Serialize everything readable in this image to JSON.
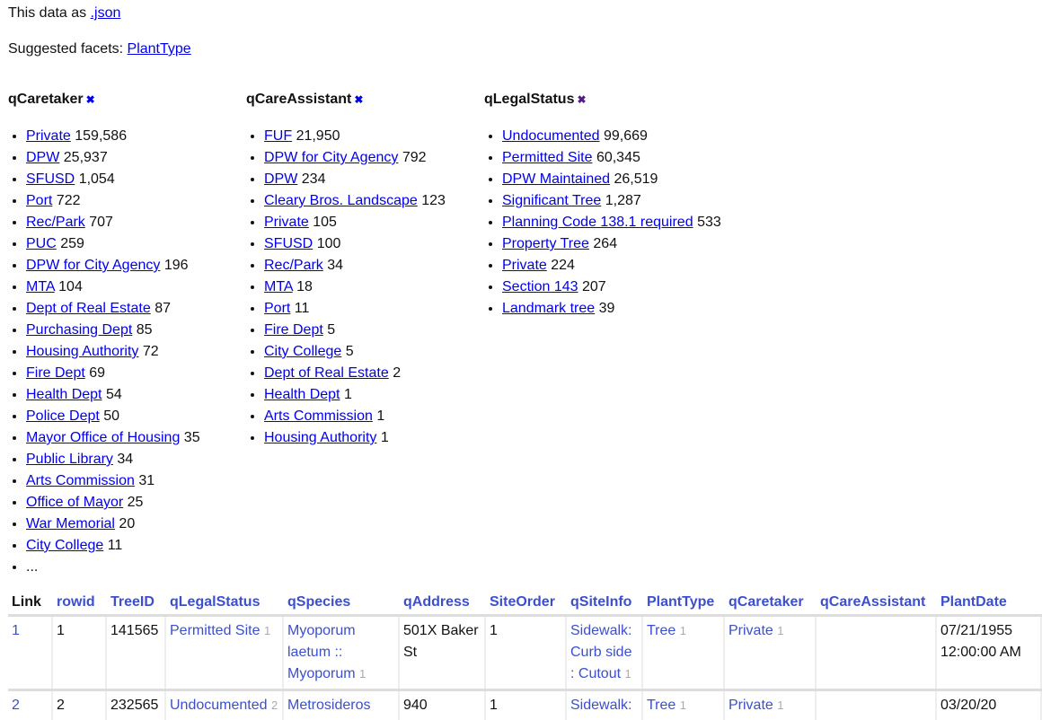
{
  "intro": {
    "prefix": "This data as ",
    "json_link": ".json"
  },
  "suggested": {
    "label": "Suggested facets: ",
    "items": [
      "PlantType"
    ]
  },
  "facets": [
    {
      "name": "qCaretaker",
      "items": [
        [
          "Private",
          "159,586"
        ],
        [
          "DPW",
          "25,937"
        ],
        [
          "SFUSD",
          "1,054"
        ],
        [
          "Port",
          "722"
        ],
        [
          "Rec/Park",
          "707"
        ],
        [
          "PUC",
          "259"
        ],
        [
          "DPW for City Agency",
          "196"
        ],
        [
          "MTA",
          "104"
        ],
        [
          "Dept of Real Estate",
          "87"
        ],
        [
          "Purchasing Dept",
          "85"
        ],
        [
          "Housing Authority",
          "72"
        ],
        [
          "Fire Dept",
          "69"
        ],
        [
          "Health Dept",
          "54"
        ],
        [
          "Police Dept",
          "50"
        ],
        [
          "Mayor Office of Housing",
          "35"
        ],
        [
          "Public Library",
          "34"
        ],
        [
          "Arts Commission",
          "31"
        ],
        [
          "Office of Mayor",
          "25"
        ],
        [
          "War Memorial",
          "20"
        ],
        [
          "City College",
          "11"
        ]
      ],
      "more": "..."
    },
    {
      "name": "qCareAssistant",
      "items": [
        [
          "FUF",
          "21,950"
        ],
        [
          "DPW for City Agency",
          "792"
        ],
        [
          "DPW",
          "234"
        ],
        [
          "Cleary Bros. Landscape",
          "123"
        ],
        [
          "Private",
          "105"
        ],
        [
          "SFUSD",
          "100"
        ],
        [
          "Rec/Park",
          "34"
        ],
        [
          "MTA",
          "18"
        ],
        [
          "Port",
          "11"
        ],
        [
          "Fire Dept",
          "5"
        ],
        [
          "City College",
          "5"
        ],
        [
          "Dept of Real Estate",
          "2"
        ],
        [
          "Health Dept",
          "1"
        ],
        [
          "Arts Commission",
          "1"
        ],
        [
          "Housing Authority",
          "1"
        ]
      ]
    },
    {
      "name": "qLegalStatus",
      "items": [
        [
          "Undocumented",
          "99,669"
        ],
        [
          "Permitted Site",
          "60,345"
        ],
        [
          "DPW Maintained",
          "26,519"
        ],
        [
          "Significant Tree",
          "1,287"
        ],
        [
          "Planning Code 138.1 required",
          "533"
        ],
        [
          "Property Tree",
          "264"
        ],
        [
          "Private",
          "224"
        ],
        [
          "Section 143",
          "207"
        ],
        [
          "Landmark tree",
          "39"
        ]
      ]
    }
  ],
  "table": {
    "columns": [
      "Link",
      "rowid",
      "TreeID",
      "qLegalStatus",
      "qSpecies",
      "qAddress",
      "SiteOrder",
      "qSiteInfo",
      "PlantType",
      "qCaretaker",
      "qCareAssistant",
      "PlantDate"
    ],
    "rows": [
      {
        "link": "1",
        "rowid": "1",
        "treeid": "141565",
        "legal": [
          "Permitted Site",
          "1"
        ],
        "species": [
          "Myoporum laetum :: Myoporum",
          "1"
        ],
        "address": "501X Baker St",
        "siteorder": "1",
        "siteinfo": [
          "Sidewalk: Curb side : Cutout",
          "1"
        ],
        "planttype": [
          "Tree",
          "1"
        ],
        "caretaker": [
          "Private",
          "1"
        ],
        "careassistant": "",
        "plantdate": "07/21/1955 12:00:00 AM"
      },
      {
        "link": "2",
        "rowid": "2",
        "treeid": "232565",
        "legal": [
          "Undocumented",
          "2"
        ],
        "species": [
          "Metrosideros",
          ""
        ],
        "address": "940",
        "siteorder": "1",
        "siteinfo": [
          "Sidewalk:",
          ""
        ],
        "planttype": [
          "Tree",
          "1"
        ],
        "caretaker": [
          "Private",
          "1"
        ],
        "careassistant": "",
        "plantdate": "03/20/20"
      }
    ]
  },
  "colors": {
    "link": "#0000ee",
    "table_link": "#3b4fcf",
    "count": "#aaaaaa"
  }
}
